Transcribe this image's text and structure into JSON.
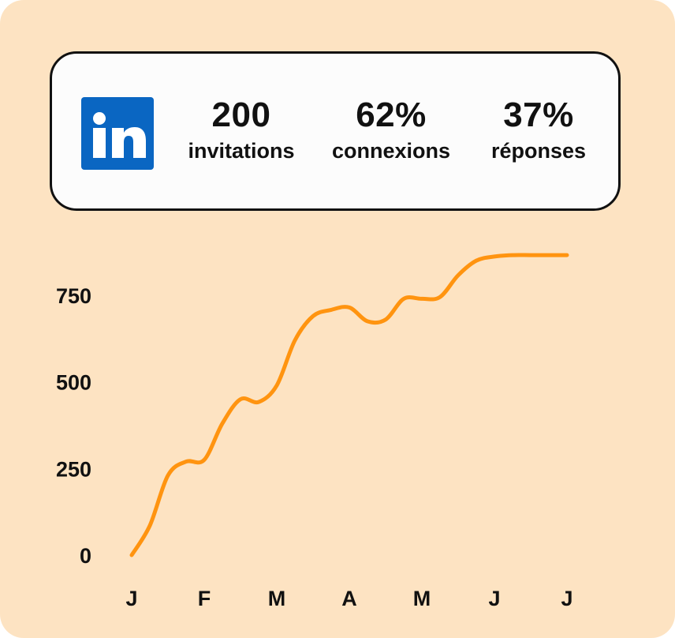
{
  "stats_panel": {
    "logo_icon": "linkedin-logo-icon",
    "logo_text": "in",
    "brand_color": "#0a66c2",
    "stats": [
      {
        "value": "200",
        "label": "invitations"
      },
      {
        "value": "62%",
        "label": "connexions"
      },
      {
        "value": "37%",
        "label": "réponses"
      }
    ]
  },
  "chart_data": {
    "type": "line",
    "x": [
      0,
      0.25,
      0.5,
      0.75,
      1,
      1.25,
      1.5,
      1.75,
      2,
      2.25,
      2.5,
      2.75,
      3,
      3.25,
      3.5,
      3.75,
      4,
      4.25,
      4.5,
      4.75,
      5,
      5.25,
      5.5,
      5.75,
      6
    ],
    "categories": [
      "J",
      "F",
      "M",
      "A",
      "M",
      "J",
      "J"
    ],
    "series": [
      {
        "color": "#ff9410",
        "values": [
          0,
          85,
          230,
          270,
          275,
          380,
          450,
          442,
          490,
          620,
          690,
          708,
          715,
          675,
          680,
          740,
          740,
          745,
          808,
          850,
          862,
          866,
          866,
          866,
          866
        ]
      }
    ],
    "yticks": [
      "0",
      "250",
      "500",
      "750"
    ],
    "ylim": [
      0,
      750
    ],
    "grid": false,
    "line_color": "#ff9410"
  }
}
